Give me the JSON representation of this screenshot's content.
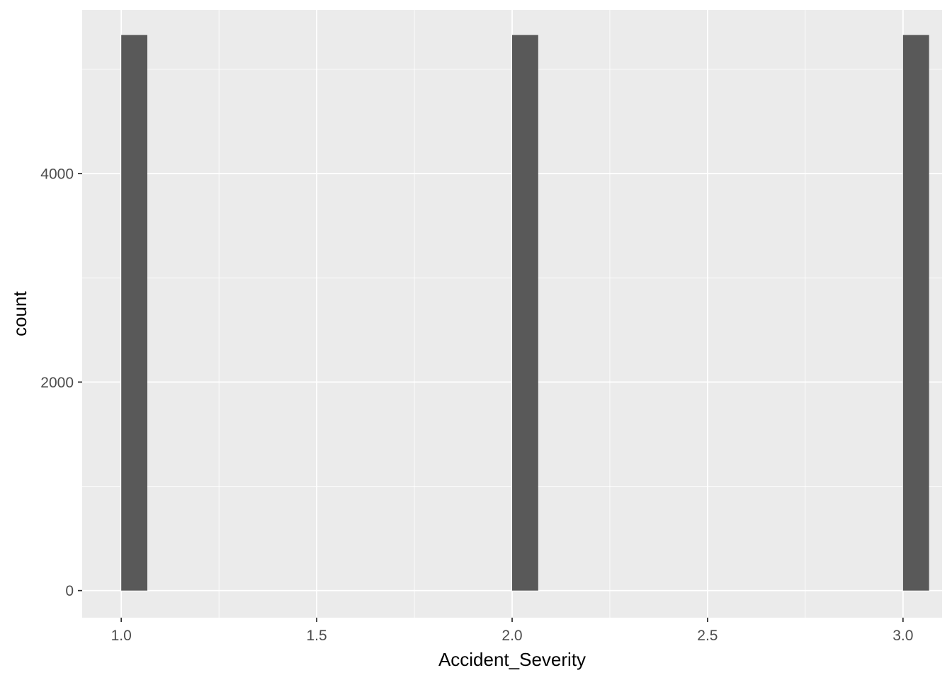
{
  "chart_data": {
    "type": "bar",
    "subtype": "histogram",
    "xlabel": "Accident_Severity",
    "ylabel": "count",
    "x": [
      1.0,
      2.0,
      3.0
    ],
    "values": [
      5330,
      5330,
      5330
    ],
    "bin_width": 0.0667,
    "xlim": [
      0.9,
      3.1
    ],
    "ylim": [
      -260,
      5570
    ],
    "x_ticks": [
      1.0,
      1.5,
      2.0,
      2.5,
      3.0
    ],
    "x_tick_labels": [
      "1.0",
      "1.5",
      "2.0",
      "2.5",
      "3.0"
    ],
    "y_ticks": [
      0,
      2000,
      4000
    ],
    "y_tick_labels": [
      "0",
      "2000",
      "4000"
    ],
    "grid": true,
    "colors": {
      "panel_background": "#ebebeb",
      "grid_major": "#ffffff",
      "bar_fill": "#595959",
      "tick_text": "#4d4d4d",
      "axis_title": "#000000"
    }
  }
}
